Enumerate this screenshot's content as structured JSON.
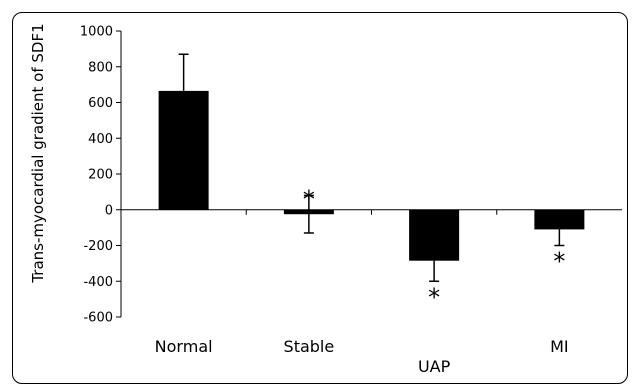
{
  "chart_data": {
    "type": "bar",
    "title": "",
    "xlabel": "",
    "ylabel": "Trans-myocardial gradient of SDF1",
    "ylim": [
      -600,
      1000
    ],
    "yticks": [
      1000,
      800,
      600,
      400,
      200,
      0,
      -200,
      -400,
      -600
    ],
    "ytick_labels": [
      "1000",
      "800",
      "600",
      "400",
      "200",
      "0",
      "-200",
      "-400",
      "-600"
    ],
    "categories": [
      "Normal",
      "Stable",
      "UAP",
      "MI"
    ],
    "values": [
      665,
      -25,
      -285,
      -110
    ],
    "error_plus": [
      205,
      105,
      0,
      0
    ],
    "error_minus": [
      0,
      105,
      115,
      90
    ],
    "significance": [
      "",
      "*",
      "*",
      "*"
    ],
    "grid": false,
    "bar_color": "#000000"
  }
}
